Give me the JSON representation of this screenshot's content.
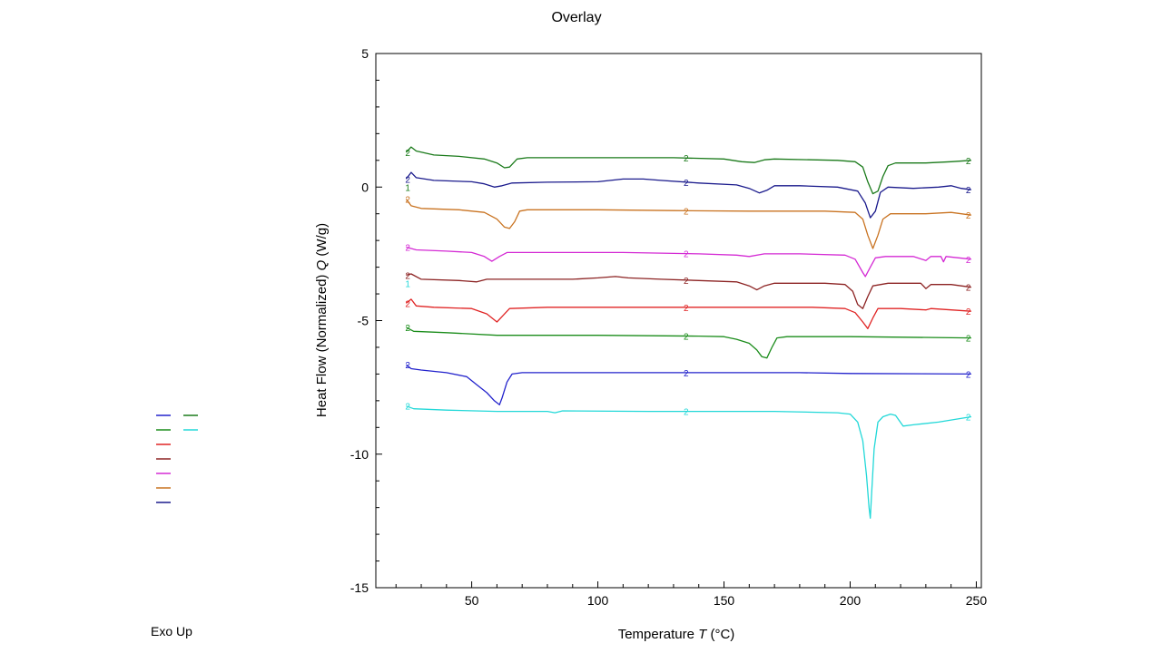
{
  "chart_data": {
    "type": "line",
    "title": "Overlay",
    "xlabel": "Temperature",
    "xlabel_symbol": "T",
    "xlabel_unit": "(°C)",
    "ylabel": "Heat Flow (Normalized)",
    "ylabel_symbol": "Q",
    "ylabel_unit": "(W/g)",
    "xlim": [
      12,
      252
    ],
    "ylim": [
      -15,
      5
    ],
    "xticks": [
      50,
      100,
      150,
      200,
      250
    ],
    "yticks": [
      5,
      0,
      -5,
      -10,
      -15
    ],
    "grid": false,
    "legend_position": "left",
    "series": [
      {
        "color": "#1a7a1a",
        "label_start": "2",
        "label_mid": "2",
        "label_end": "2",
        "points": [
          [
            24,
            1.3
          ],
          [
            26,
            1.5
          ],
          [
            28,
            1.35
          ],
          [
            35,
            1.2
          ],
          [
            45,
            1.15
          ],
          [
            55,
            1.05
          ],
          [
            60,
            0.9
          ],
          [
            63,
            0.72
          ],
          [
            65,
            0.75
          ],
          [
            68,
            1.05
          ],
          [
            72,
            1.1
          ],
          [
            100,
            1.1
          ],
          [
            130,
            1.1
          ],
          [
            150,
            1.05
          ],
          [
            157,
            0.95
          ],
          [
            162,
            0.92
          ],
          [
            166,
            1.02
          ],
          [
            170,
            1.05
          ],
          [
            195,
            1.0
          ],
          [
            202,
            0.95
          ],
          [
            205,
            0.75
          ],
          [
            207,
            0.2
          ],
          [
            209,
            -0.25
          ],
          [
            211,
            -0.15
          ],
          [
            213,
            0.4
          ],
          [
            215,
            0.8
          ],
          [
            218,
            0.9
          ],
          [
            230,
            0.9
          ],
          [
            240,
            0.95
          ],
          [
            248,
            1.0
          ]
        ]
      },
      {
        "color": "#1a1a8c",
        "label_start": "2",
        "label_mid": "2",
        "label_end": "2",
        "points": [
          [
            24,
            0.3
          ],
          [
            26,
            0.55
          ],
          [
            28,
            0.35
          ],
          [
            35,
            0.25
          ],
          [
            50,
            0.2
          ],
          [
            55,
            0.12
          ],
          [
            59,
            0.0
          ],
          [
            62,
            0.05
          ],
          [
            66,
            0.15
          ],
          [
            80,
            0.18
          ],
          [
            100,
            0.2
          ],
          [
            110,
            0.3
          ],
          [
            118,
            0.3
          ],
          [
            125,
            0.25
          ],
          [
            140,
            0.15
          ],
          [
            155,
            0.08
          ],
          [
            160,
            -0.05
          ],
          [
            164,
            -0.22
          ],
          [
            167,
            -0.12
          ],
          [
            170,
            0.05
          ],
          [
            180,
            0.05
          ],
          [
            195,
            0.0
          ],
          [
            203,
            -0.15
          ],
          [
            206,
            -0.6
          ],
          [
            208,
            -1.15
          ],
          [
            210,
            -0.9
          ],
          [
            212,
            -0.2
          ],
          [
            215,
            0.0
          ],
          [
            225,
            -0.05
          ],
          [
            235,
            -0.0
          ],
          [
            240,
            0.05
          ],
          [
            244,
            -0.05
          ],
          [
            248,
            -0.1
          ]
        ]
      },
      {
        "color": "#c97321",
        "label_start": "2",
        "label_mid": "2",
        "label_end": "2",
        "points": [
          [
            24,
            -0.45
          ],
          [
            26,
            -0.7
          ],
          [
            30,
            -0.8
          ],
          [
            45,
            -0.85
          ],
          [
            55,
            -0.95
          ],
          [
            60,
            -1.2
          ],
          [
            63,
            -1.5
          ],
          [
            65,
            -1.55
          ],
          [
            67,
            -1.3
          ],
          [
            69,
            -0.9
          ],
          [
            72,
            -0.85
          ],
          [
            100,
            -0.85
          ],
          [
            130,
            -0.88
          ],
          [
            160,
            -0.9
          ],
          [
            190,
            -0.9
          ],
          [
            202,
            -0.95
          ],
          [
            205,
            -1.2
          ],
          [
            207,
            -1.8
          ],
          [
            209,
            -2.3
          ],
          [
            211,
            -1.8
          ],
          [
            213,
            -1.2
          ],
          [
            216,
            -1.0
          ],
          [
            230,
            -1.0
          ],
          [
            240,
            -0.95
          ],
          [
            248,
            -1.05
          ]
        ]
      },
      {
        "color": "#d42ad4",
        "label_start": "2",
        "label_mid": "2",
        "label_end": "2",
        "points": [
          [
            24,
            -2.25
          ],
          [
            28,
            -2.35
          ],
          [
            40,
            -2.4
          ],
          [
            50,
            -2.45
          ],
          [
            55,
            -2.6
          ],
          [
            58,
            -2.78
          ],
          [
            61,
            -2.6
          ],
          [
            64,
            -2.45
          ],
          [
            80,
            -2.45
          ],
          [
            110,
            -2.45
          ],
          [
            140,
            -2.5
          ],
          [
            155,
            -2.55
          ],
          [
            160,
            -2.6
          ],
          [
            166,
            -2.5
          ],
          [
            180,
            -2.5
          ],
          [
            198,
            -2.55
          ],
          [
            202,
            -2.7
          ],
          [
            205,
            -3.2
          ],
          [
            206,
            -3.35
          ],
          [
            208,
            -3.0
          ],
          [
            210,
            -2.65
          ],
          [
            214,
            -2.6
          ],
          [
            225,
            -2.6
          ],
          [
            230,
            -2.75
          ],
          [
            232,
            -2.6
          ],
          [
            236,
            -2.6
          ],
          [
            237,
            -2.8
          ],
          [
            238,
            -2.6
          ],
          [
            248,
            -2.7
          ]
        ]
      },
      {
        "color": "#8c2323",
        "label_start": "2",
        "label_mid": "2",
        "label_end": "2",
        "points": [
          [
            24,
            -3.3
          ],
          [
            26,
            -3.25
          ],
          [
            30,
            -3.45
          ],
          [
            45,
            -3.5
          ],
          [
            52,
            -3.55
          ],
          [
            56,
            -3.45
          ],
          [
            70,
            -3.45
          ],
          [
            90,
            -3.45
          ],
          [
            100,
            -3.4
          ],
          [
            107,
            -3.35
          ],
          [
            112,
            -3.4
          ],
          [
            125,
            -3.45
          ],
          [
            140,
            -3.5
          ],
          [
            155,
            -3.55
          ],
          [
            160,
            -3.7
          ],
          [
            163,
            -3.85
          ],
          [
            166,
            -3.7
          ],
          [
            170,
            -3.6
          ],
          [
            190,
            -3.6
          ],
          [
            198,
            -3.65
          ],
          [
            201,
            -3.9
          ],
          [
            203,
            -4.4
          ],
          [
            205,
            -4.55
          ],
          [
            207,
            -4.1
          ],
          [
            209,
            -3.7
          ],
          [
            215,
            -3.6
          ],
          [
            228,
            -3.6
          ],
          [
            230,
            -3.8
          ],
          [
            232,
            -3.65
          ],
          [
            240,
            -3.65
          ],
          [
            248,
            -3.75
          ]
        ]
      },
      {
        "color": "#e02424",
        "label_start": "2",
        "label_mid": "2",
        "label_end": "2",
        "points": [
          [
            24,
            -4.35
          ],
          [
            26,
            -4.2
          ],
          [
            28,
            -4.45
          ],
          [
            35,
            -4.5
          ],
          [
            50,
            -4.55
          ],
          [
            56,
            -4.75
          ],
          [
            60,
            -5.05
          ],
          [
            62,
            -4.85
          ],
          [
            65,
            -4.55
          ],
          [
            80,
            -4.5
          ],
          [
            120,
            -4.5
          ],
          [
            150,
            -4.5
          ],
          [
            185,
            -4.5
          ],
          [
            198,
            -4.55
          ],
          [
            202,
            -4.7
          ],
          [
            205,
            -5.05
          ],
          [
            207,
            -5.3
          ],
          [
            209,
            -4.9
          ],
          [
            211,
            -4.55
          ],
          [
            220,
            -4.55
          ],
          [
            230,
            -4.6
          ],
          [
            232,
            -4.55
          ],
          [
            248,
            -4.65
          ]
        ]
      },
      {
        "color": "#1a8c1a",
        "label_start": "2",
        "label_mid": "2",
        "label_end": "2",
        "points": [
          [
            24,
            -5.25
          ],
          [
            27,
            -5.4
          ],
          [
            40,
            -5.45
          ],
          [
            60,
            -5.55
          ],
          [
            100,
            -5.55
          ],
          [
            140,
            -5.58
          ],
          [
            150,
            -5.6
          ],
          [
            155,
            -5.7
          ],
          [
            160,
            -5.85
          ],
          [
            163,
            -6.1
          ],
          [
            165,
            -6.35
          ],
          [
            167,
            -6.4
          ],
          [
            169,
            -6.0
          ],
          [
            171,
            -5.65
          ],
          [
            175,
            -5.6
          ],
          [
            200,
            -5.6
          ],
          [
            248,
            -5.65
          ]
        ]
      },
      {
        "color": "#2222cc",
        "label_start": "2",
        "label_mid": "2",
        "label_end": "2",
        "points": [
          [
            24,
            -6.65
          ],
          [
            26,
            -6.8
          ],
          [
            30,
            -6.85
          ],
          [
            40,
            -6.95
          ],
          [
            48,
            -7.1
          ],
          [
            52,
            -7.4
          ],
          [
            56,
            -7.7
          ],
          [
            59,
            -8.0
          ],
          [
            61,
            -8.15
          ],
          [
            62,
            -7.9
          ],
          [
            64,
            -7.3
          ],
          [
            66,
            -7.0
          ],
          [
            70,
            -6.95
          ],
          [
            100,
            -6.95
          ],
          [
            150,
            -6.95
          ],
          [
            180,
            -6.95
          ],
          [
            200,
            -6.98
          ],
          [
            248,
            -7.0
          ]
        ]
      },
      {
        "color": "#22d8d8",
        "label_start": "2",
        "label_mid": "2",
        "label_end": "2",
        "points": [
          [
            24,
            -8.2
          ],
          [
            27,
            -8.3
          ],
          [
            40,
            -8.35
          ],
          [
            60,
            -8.4
          ],
          [
            80,
            -8.4
          ],
          [
            83,
            -8.45
          ],
          [
            86,
            -8.38
          ],
          [
            120,
            -8.4
          ],
          [
            170,
            -8.4
          ],
          [
            195,
            -8.45
          ],
          [
            200,
            -8.5
          ],
          [
            203,
            -8.8
          ],
          [
            205,
            -9.5
          ],
          [
            206.5,
            -10.8
          ],
          [
            207.5,
            -12.0
          ],
          [
            208,
            -12.4
          ],
          [
            208.5,
            -11.5
          ],
          [
            209.5,
            -9.8
          ],
          [
            211,
            -8.8
          ],
          [
            213,
            -8.6
          ],
          [
            216,
            -8.5
          ],
          [
            218,
            -8.55
          ],
          [
            221,
            -8.95
          ],
          [
            225,
            -8.9
          ],
          [
            235,
            -8.8
          ],
          [
            248,
            -8.6
          ]
        ]
      }
    ],
    "extra_left_label": {
      "text": "1",
      "color": "#22d8d8",
      "x": 24,
      "y": -3.6
    },
    "extra_left_label2": {
      "text": "1",
      "color": "#1a7a1a",
      "x": 24,
      "y": 0.0
    }
  },
  "legend": {
    "entries": [
      {
        "color": "#2222cc"
      },
      {
        "color": "#1a7a1a"
      },
      {
        "color": "#1a8c1a"
      },
      {
        "color": "#22d8d8"
      },
      {
        "color": "#e02424"
      },
      {
        "color": "#8c2323"
      },
      {
        "color": "#d42ad4"
      },
      {
        "color": "#c97321"
      },
      {
        "color": "#1a1a8c"
      }
    ]
  },
  "footer": {
    "exo_up": "Exo Up"
  }
}
